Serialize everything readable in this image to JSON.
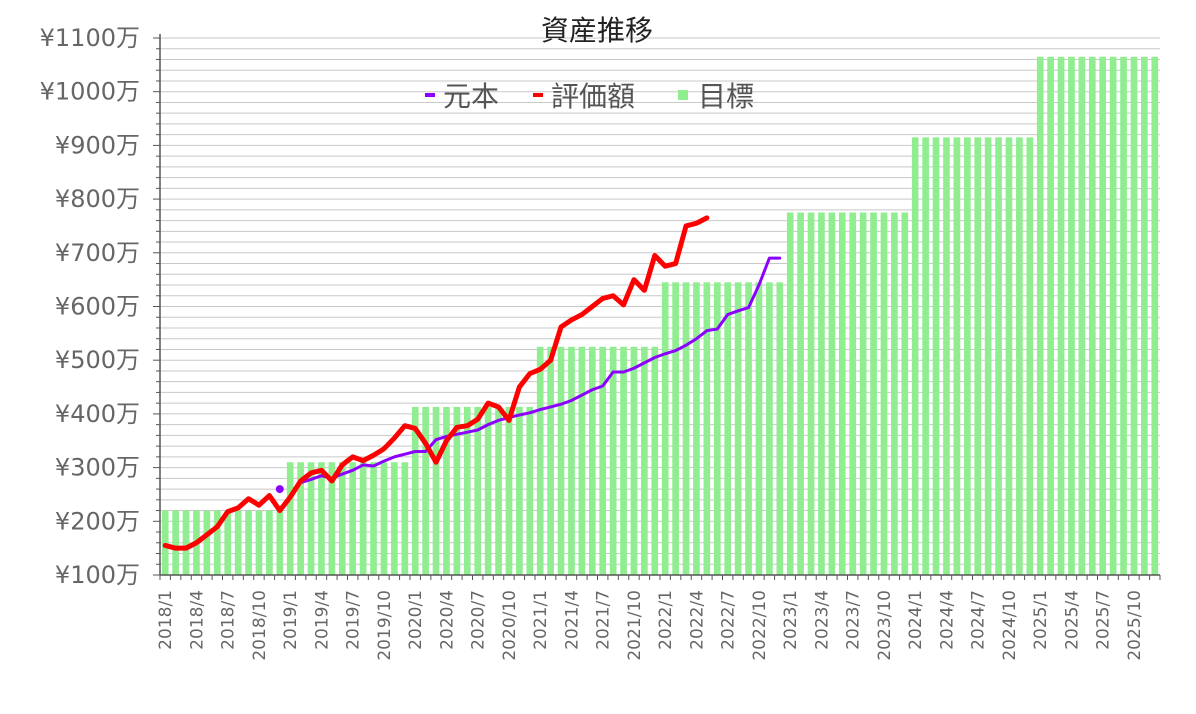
{
  "chart_data": {
    "type": "bar",
    "title": "資産推移",
    "ylim": [
      100,
      1100
    ],
    "y_ticks": [
      "¥100万",
      "¥200万",
      "¥300万",
      "¥400万",
      "¥500万",
      "¥600万",
      "¥700万",
      "¥800万",
      "¥900万",
      "¥1000万",
      "¥1100万"
    ],
    "y_tick_values": [
      100,
      200,
      300,
      400,
      500,
      600,
      700,
      800,
      900,
      1000,
      1100
    ],
    "y_minor_step": 20,
    "grid": true,
    "legend_position": "top-center",
    "x_tick_labels": [
      "2018/1",
      "2018/4",
      "2018/7",
      "2018/10",
      "2019/1",
      "2019/4",
      "2019/7",
      "2019/10",
      "2020/1",
      "2020/4",
      "2020/7",
      "2020/10",
      "2021/1",
      "2021/4",
      "2021/7",
      "2021/10",
      "2022/1",
      "2022/4",
      "2022/7",
      "2022/10",
      "2023/1",
      "2023/4",
      "2023/7",
      "2023/10",
      "2024/1",
      "2024/4",
      "2024/7",
      "2024/10",
      "2025/1",
      "2025/4",
      "2025/7",
      "2025/10"
    ],
    "months": [
      "2018/1",
      "2018/2",
      "2018/3",
      "2018/4",
      "2018/5",
      "2018/6",
      "2018/7",
      "2018/8",
      "2018/9",
      "2018/10",
      "2018/11",
      "2018/12",
      "2019/1",
      "2019/2",
      "2019/3",
      "2019/4",
      "2019/5",
      "2019/6",
      "2019/7",
      "2019/8",
      "2019/9",
      "2019/10",
      "2019/11",
      "2019/12",
      "2020/1",
      "2020/2",
      "2020/3",
      "2020/4",
      "2020/5",
      "2020/6",
      "2020/7",
      "2020/8",
      "2020/9",
      "2020/10",
      "2020/11",
      "2020/12",
      "2021/1",
      "2021/2",
      "2021/3",
      "2021/4",
      "2021/5",
      "2021/6",
      "2021/7",
      "2021/8",
      "2021/9",
      "2021/10",
      "2021/11",
      "2021/12",
      "2022/1",
      "2022/2",
      "2022/3",
      "2022/4",
      "2022/5",
      "2022/6",
      "2022/7",
      "2022/8",
      "2022/9",
      "2022/10",
      "2022/11",
      "2022/12",
      "2023/1",
      "2023/2",
      "2023/3",
      "2023/4",
      "2023/5",
      "2023/6",
      "2023/7",
      "2023/8",
      "2023/9",
      "2023/10",
      "2023/11",
      "2023/12",
      "2024/1",
      "2024/2",
      "2024/3",
      "2024/4",
      "2024/5",
      "2024/6",
      "2024/7",
      "2024/8",
      "2024/9",
      "2024/10",
      "2024/11",
      "2024/12",
      "2025/1",
      "2025/2",
      "2025/3",
      "2025/4",
      "2025/5",
      "2025/6",
      "2025/7",
      "2025/8",
      "2025/9",
      "2025/10",
      "2025/11",
      "2025/12"
    ],
    "series": [
      {
        "name": "元本",
        "kind": "line",
        "color": "#8b00ff",
        "start_index": 11,
        "values": [
          260,
          null,
          272,
          278,
          285,
          280,
          288,
          295,
          305,
          303,
          312,
          320,
          325,
          330,
          330,
          352,
          358,
          362,
          366,
          370,
          380,
          388,
          393,
          398,
          402,
          408,
          413,
          418,
          425,
          435,
          445,
          452,
          478,
          478,
          485,
          495,
          505,
          512,
          518,
          528,
          540,
          555,
          558,
          585,
          592,
          598,
          640,
          690,
          690
        ]
      },
      {
        "name": "評価額",
        "kind": "line",
        "color": "#ff0000",
        "start_index": 0,
        "values": [
          155,
          150,
          150,
          160,
          175,
          190,
          218,
          225,
          242,
          230,
          248,
          220,
          245,
          275,
          290,
          295,
          275,
          305,
          320,
          313,
          323,
          335,
          355,
          378,
          373,
          345,
          310,
          350,
          375,
          378,
          390,
          420,
          413,
          388,
          450,
          475,
          483,
          500,
          562,
          575,
          585,
          600,
          615,
          620,
          603,
          650,
          630,
          695,
          675,
          680,
          750,
          755,
          765
        ]
      },
      {
        "name": "目標",
        "kind": "bar",
        "color": "#90ee90",
        "start_index": 0,
        "values": [
          220,
          220,
          220,
          220,
          220,
          220,
          220,
          220,
          220,
          220,
          220,
          220,
          310,
          310,
          310,
          310,
          310,
          310,
          310,
          310,
          310,
          310,
          310,
          310,
          413,
          413,
          413,
          413,
          413,
          413,
          413,
          413,
          413,
          413,
          413,
          413,
          525,
          525,
          525,
          525,
          525,
          525,
          525,
          525,
          525,
          525,
          525,
          525,
          645,
          645,
          645,
          645,
          645,
          645,
          645,
          645,
          645,
          645,
          645,
          645,
          775,
          775,
          775,
          775,
          775,
          775,
          775,
          775,
          775,
          775,
          775,
          775,
          915,
          915,
          915,
          915,
          915,
          915,
          915,
          915,
          915,
          915,
          915,
          915,
          1065,
          1065,
          1065,
          1065,
          1065,
          1065,
          1065,
          1065,
          1065,
          1065,
          1065,
          1065
        ]
      }
    ],
    "colors": {
      "grid": "#c8c8c8",
      "axis": "#555555",
      "text": "#666666"
    }
  }
}
